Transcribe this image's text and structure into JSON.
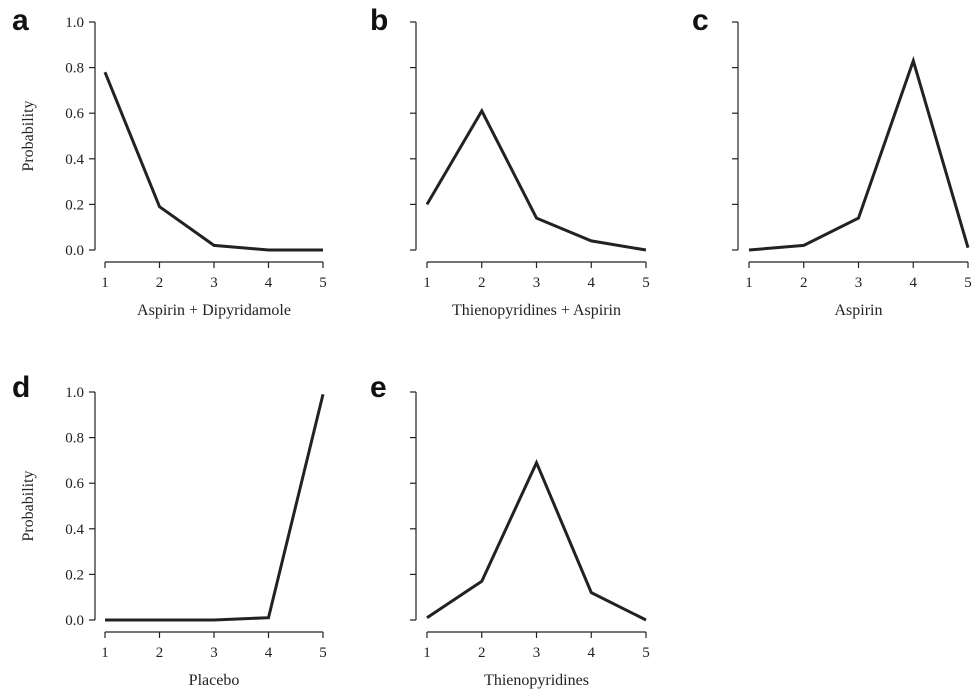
{
  "chart_data": [
    {
      "panel": "a",
      "type": "line",
      "x": [
        1,
        2,
        3,
        4,
        5
      ],
      "values": [
        0.78,
        0.19,
        0.02,
        0.0,
        0.0
      ],
      "xlabel": "Aspirin + Dipyridamole",
      "ylabel": "Probability",
      "ylim": [
        0,
        1
      ],
      "yticks": [
        "0.0",
        "0.2",
        "0.4",
        "0.6",
        "0.8",
        "1.0"
      ],
      "xticks": [
        "1",
        "2",
        "3",
        "4",
        "5"
      ],
      "show_ytick_labels": true,
      "grid": false
    },
    {
      "panel": "b",
      "type": "line",
      "x": [
        1,
        2,
        3,
        4,
        5
      ],
      "values": [
        0.2,
        0.61,
        0.14,
        0.04,
        0.0
      ],
      "xlabel": "Thienopyridines + Aspirin",
      "ylabel": "",
      "ylim": [
        0,
        1
      ],
      "yticks": [
        "0.0",
        "0.2",
        "0.4",
        "0.6",
        "0.8",
        "1.0"
      ],
      "xticks": [
        "1",
        "2",
        "3",
        "4",
        "5"
      ],
      "show_ytick_labels": false,
      "grid": false
    },
    {
      "panel": "c",
      "type": "line",
      "x": [
        1,
        2,
        3,
        4,
        5
      ],
      "values": [
        0.0,
        0.02,
        0.14,
        0.83,
        0.01
      ],
      "xlabel": "Aspirin",
      "ylabel": "",
      "ylim": [
        0,
        1
      ],
      "yticks": [
        "0.0",
        "0.2",
        "0.4",
        "0.6",
        "0.8",
        "1.0"
      ],
      "xticks": [
        "1",
        "2",
        "3",
        "4",
        "5"
      ],
      "show_ytick_labels": false,
      "grid": false
    },
    {
      "panel": "d",
      "type": "line",
      "x": [
        1,
        2,
        3,
        4,
        5
      ],
      "values": [
        0.0,
        0.0,
        0.0,
        0.01,
        0.99
      ],
      "xlabel": "Placebo",
      "ylabel": "Probability",
      "ylim": [
        0,
        1
      ],
      "yticks": [
        "0.0",
        "0.2",
        "0.4",
        "0.6",
        "0.8",
        "1.0"
      ],
      "xticks": [
        "1",
        "2",
        "3",
        "4",
        "5"
      ],
      "show_ytick_labels": true,
      "grid": false
    },
    {
      "panel": "e",
      "type": "line",
      "x": [
        1,
        2,
        3,
        4,
        5
      ],
      "values": [
        0.01,
        0.17,
        0.69,
        0.12,
        0.0
      ],
      "xlabel": "Thienopyridines",
      "ylabel": "",
      "ylim": [
        0,
        1
      ],
      "yticks": [
        "0.0",
        "0.2",
        "0.4",
        "0.6",
        "0.8",
        "1.0"
      ],
      "xticks": [
        "1",
        "2",
        "3",
        "4",
        "5"
      ],
      "show_ytick_labels": false,
      "grid": false
    }
  ],
  "colors": {
    "line": "#222222",
    "background": "#ffffff"
  }
}
